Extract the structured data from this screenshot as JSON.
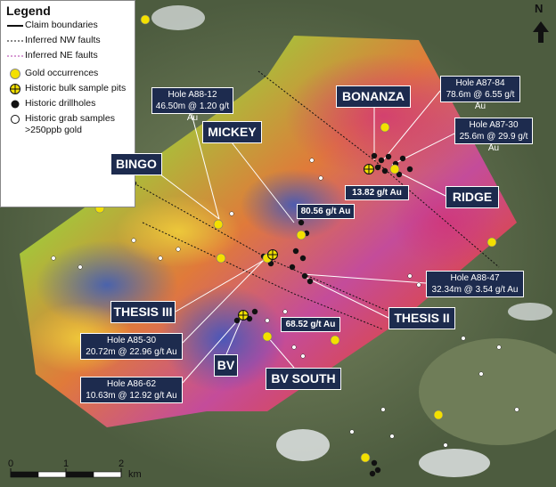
{
  "legend": {
    "title": "Legend",
    "items": [
      "Claim boundaries",
      "Inferred NW faults",
      "Inferred NE faults",
      "Gold occurrences",
      "Historic bulk sample pits",
      "Historic drillholes",
      "Historic grab samples >250ppb gold"
    ]
  },
  "areas": [
    "BONANZA",
    "MICKEY",
    "BINGO",
    "RIDGE",
    "THESIS III",
    "THESIS II",
    "BV",
    "BV SOUTH"
  ],
  "callouts": [
    {
      "title": "Hole A88-12",
      "detail": "46.50m @ 1.20 g/t Au"
    },
    {
      "title": "Hole A87-84",
      "detail": "78.6m @ 6.55 g/t Au"
    },
    {
      "title": "Hole A87-30",
      "detail": "25.6m @ 29.9 g/t Au"
    },
    {
      "title": "Hole A88-47",
      "detail": "32.34m @ 3.54 g/t Au"
    },
    {
      "title": "Hole A85-30",
      "detail": "20.72m @ 22.96 g/t Au"
    },
    {
      "title": "Hole A86-62",
      "detail": "10.63m @ 12.92 g/t Au"
    }
  ],
  "assays": [
    "13.82 g/t Au",
    "80.56 g/t Au",
    "68.52 g/t Au"
  ],
  "scale": {
    "ticks": [
      0,
      1,
      2
    ],
    "unit": "km"
  },
  "north": "N"
}
